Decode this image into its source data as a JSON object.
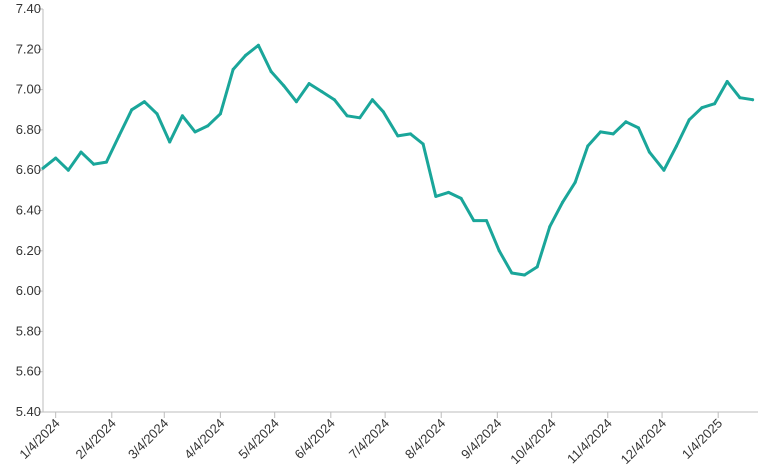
{
  "chart_data": {
    "type": "line",
    "title": "",
    "xlabel": "",
    "ylabel": "",
    "ylim": [
      5.4,
      7.4
    ],
    "y_ticks": [
      "5.40",
      "5.60",
      "5.80",
      "6.00",
      "6.20",
      "6.40",
      "6.60",
      "6.80",
      "7.00",
      "7.20",
      "7.40"
    ],
    "x_ticks": [
      "1/4/2024",
      "2/4/2024",
      "3/4/2024",
      "4/4/2024",
      "5/4/2024",
      "6/4/2024",
      "7/4/2024",
      "8/4/2024",
      "9/4/2024",
      "10/4/2024",
      "11/4/2024",
      "12/4/2024",
      "1/4/2025"
    ],
    "grid": false,
    "legend": "none",
    "series": [
      {
        "color": "#1aa69a",
        "x": [
          "12/28/2023",
          "1/4/2024",
          "1/11/2024",
          "1/18/2024",
          "1/25/2024",
          "2/1/2024",
          "2/8/2024",
          "2/15/2024",
          "2/22/2024",
          "2/29/2024",
          "3/7/2024",
          "3/14/2024",
          "3/21/2024",
          "3/28/2024",
          "4/4/2024",
          "4/11/2024",
          "4/18/2024",
          "4/25/2024",
          "5/2/2024",
          "5/9/2024",
          "5/16/2024",
          "5/23/2024",
          "5/30/2024",
          "6/6/2024",
          "6/13/2024",
          "6/20/2024",
          "6/27/2024",
          "7/3/2024",
          "7/11/2024",
          "7/18/2024",
          "7/25/2024",
          "8/1/2024",
          "8/8/2024",
          "8/15/2024",
          "8/22/2024",
          "8/29/2024",
          "9/5/2024",
          "9/12/2024",
          "9/19/2024",
          "9/26/2024",
          "10/3/2024",
          "10/10/2024",
          "10/17/2024",
          "10/24/2024",
          "10/31/2024",
          "11/7/2024",
          "11/14/2024",
          "11/21/2024",
          "11/27/2024",
          "12/5/2024",
          "12/12/2024",
          "12/19/2024",
          "12/26/2024",
          "1/2/2025",
          "1/9/2025",
          "1/16/2025",
          "1/23/2025"
        ],
        "values": [
          6.61,
          6.66,
          6.6,
          6.69,
          6.63,
          6.64,
          6.77,
          6.9,
          6.94,
          6.88,
          6.74,
          6.87,
          6.79,
          6.82,
          6.88,
          7.1,
          7.17,
          7.22,
          7.09,
          7.02,
          6.94,
          7.03,
          6.99,
          6.95,
          6.87,
          6.86,
          6.95,
          6.89,
          6.77,
          6.78,
          6.73,
          6.47,
          6.49,
          6.46,
          6.35,
          6.35,
          6.2,
          6.09,
          6.08,
          6.12,
          6.32,
          6.44,
          6.54,
          6.72,
          6.79,
          6.78,
          6.84,
          6.81,
          6.69,
          6.6,
          6.72,
          6.85,
          6.91,
          6.93,
          7.04,
          6.96,
          6.95
        ]
      }
    ]
  }
}
